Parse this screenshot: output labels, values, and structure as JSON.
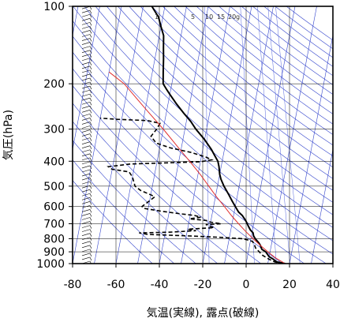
{
  "chart_data": {
    "type": "line",
    "xlabel": "気温(実線), 露点(破線)",
    "ylabel": "気圧(hPa)",
    "x_unit": "°C",
    "y_unit": "hPa",
    "xlim": [
      -80,
      40
    ],
    "ylim": [
      1000,
      100
    ],
    "y_scale": "log",
    "x_ticks": [
      -80,
      -60,
      -40,
      -20,
      0,
      20,
      40
    ],
    "x_tick_labels": [
      "-80",
      "-60",
      "-40",
      "-20",
      "0",
      "20",
      "40"
    ],
    "y_ticks": [
      1000,
      900,
      800,
      700,
      600,
      500,
      400,
      300,
      200,
      100
    ],
    "y_tick_labels": [
      "1000",
      "900",
      "800",
      "700",
      "600",
      "500",
      "400",
      "300",
      "200",
      "100"
    ],
    "grid": true,
    "mixing_ratio_labels": [
      "1",
      "5",
      "10",
      "15",
      "20",
      "g"
    ],
    "series": [
      {
        "name": "",
        "style": "solid",
        "color": "#000000",
        "points": [
          [
            1000,
            18.0
          ],
          [
            985,
            14.0
          ],
          [
            960,
            12.0
          ],
          [
            940,
            10.0
          ],
          [
            920,
            9.0
          ],
          [
            900,
            8.0
          ],
          [
            880,
            6.0
          ],
          [
            850,
            5.0
          ],
          [
            830,
            4.0
          ],
          [
            800,
            2.0
          ],
          [
            780,
            1.0
          ],
          [
            760,
            0.5
          ],
          [
            740,
            -1.0
          ],
          [
            720,
            -2.0
          ],
          [
            700,
            -3.0
          ],
          [
            680,
            -4.0
          ],
          [
            650,
            -6.0
          ],
          [
            630,
            -8.0
          ],
          [
            600,
            -10.0
          ],
          [
            570,
            -12.0
          ],
          [
            540,
            -14.0
          ],
          [
            500,
            -17.0
          ],
          [
            470,
            -19.0
          ],
          [
            450,
            -20.0
          ],
          [
            420,
            -21.0
          ],
          [
            400,
            -22.0
          ],
          [
            380,
            -24.0
          ],
          [
            360,
            -26.0
          ],
          [
            330,
            -30.0
          ],
          [
            300,
            -35.0
          ],
          [
            280,
            -38.0
          ],
          [
            260,
            -42.0
          ],
          [
            240,
            -46.0
          ],
          [
            220,
            -50.0
          ],
          [
            210,
            -52.0
          ],
          [
            200,
            -54.0
          ],
          [
            180,
            -55.0
          ],
          [
            160,
            -56.0
          ],
          [
            145,
            -57.0
          ],
          [
            130,
            -58.0
          ],
          [
            120,
            -60.0
          ],
          [
            110,
            -62.0
          ],
          [
            105,
            -64.0
          ],
          [
            100,
            -66.0
          ]
        ]
      },
      {
        "name": "",
        "style": "dashed",
        "color": "#000000",
        "points": [
          [
            1000,
            17.0
          ],
          [
            985,
            13.0
          ],
          [
            960,
            10.0
          ],
          [
            930,
            7.0
          ],
          [
            900,
            5.0
          ],
          [
            870,
            3.0
          ],
          [
            840,
            2.0
          ],
          [
            820,
            1.0
          ],
          [
            810,
            -1.0
          ],
          [
            800,
            -4.0
          ],
          [
            790,
            -15.0
          ],
          [
            780,
            -30.0
          ],
          [
            770,
            -48.0
          ],
          [
            760,
            -52.0
          ],
          [
            755,
            -38.0
          ],
          [
            745,
            -26.0
          ],
          [
            735,
            -30.0
          ],
          [
            725,
            -18.0
          ],
          [
            715,
            -20.0
          ],
          [
            705,
            -22.0
          ],
          [
            700,
            -15.0
          ],
          [
            690,
            -20.0
          ],
          [
            680,
            -22.0
          ],
          [
            670,
            -30.0
          ],
          [
            660,
            -25.0
          ],
          [
            650,
            -28.0
          ],
          [
            640,
            -35.0
          ],
          [
            625,
            -44.0
          ],
          [
            610,
            -52.0
          ],
          [
            600,
            -53.0
          ],
          [
            570,
            -50.0
          ],
          [
            550,
            -48.0
          ],
          [
            540,
            -50.0
          ],
          [
            520,
            -55.0
          ],
          [
            500,
            -58.0
          ],
          [
            480,
            -59.0
          ],
          [
            460,
            -60.0
          ],
          [
            440,
            -62.0
          ],
          [
            430,
            -70.0
          ],
          [
            420,
            -72.0
          ],
          [
            410,
            -62.0
          ],
          [
            402,
            -30.0
          ],
          [
            395,
            -25.0
          ],
          [
            385,
            -28.0
          ],
          [
            370,
            -35.0
          ],
          [
            355,
            -45.0
          ],
          [
            340,
            -52.0
          ],
          [
            320,
            -55.0
          ],
          [
            300,
            -53.0
          ],
          [
            285,
            -52.0
          ],
          [
            278,
            -58.0
          ],
          [
            275,
            -72.0
          ],
          [
            272,
            -80.0
          ]
        ]
      },
      {
        "name": "",
        "style": "solid",
        "color": "#e03030",
        "points": [
          [
            1000,
            18.0
          ],
          [
            950,
            13.0
          ],
          [
            900,
            9.0
          ],
          [
            850,
            5.0
          ],
          [
            800,
            1.0
          ],
          [
            750,
            -3.0
          ],
          [
            700,
            -7.0
          ],
          [
            650,
            -11.0
          ],
          [
            600,
            -15.0
          ],
          [
            550,
            -19.5
          ],
          [
            500,
            -24.0
          ],
          [
            450,
            -29.0
          ],
          [
            400,
            -35.0
          ],
          [
            350,
            -42.0
          ],
          [
            300,
            -50.0
          ],
          [
            250,
            -60.0
          ],
          [
            200,
            -72.0
          ],
          [
            180,
            -80.0
          ]
        ]
      }
    ]
  }
}
